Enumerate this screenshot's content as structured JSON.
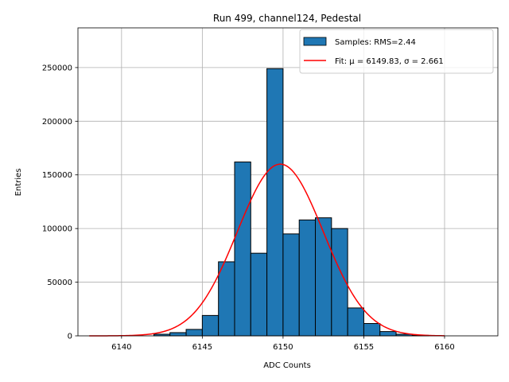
{
  "chart_data": {
    "type": "bar",
    "title": "Run 499, channel124, Pedestal",
    "xlabel": "ADC Counts",
    "ylabel": "Entries",
    "xlim": [
      6137.3,
      6163.3
    ],
    "ylim": [
      0,
      287000
    ],
    "grid": true,
    "xticks": [
      6140,
      6145,
      6150,
      6155,
      6160
    ],
    "yticks": [
      0,
      50000,
      100000,
      150000,
      200000,
      250000
    ],
    "bin_edges": [
      6138,
      6139,
      6140,
      6141,
      6142,
      6143,
      6144,
      6145,
      6146,
      6147,
      6148,
      6149,
      6150,
      6151,
      6152,
      6153,
      6154,
      6155,
      6156,
      6157,
      6158,
      6159,
      6160,
      6161,
      6162
    ],
    "counts": [
      0,
      0,
      0,
      0,
      1500,
      3000,
      6000,
      19000,
      69000,
      162000,
      77000,
      249000,
      95000,
      108000,
      110000,
      100000,
      26000,
      11500,
      4000,
      1500,
      500,
      0,
      0,
      0
    ],
    "series": [
      {
        "name": "Samples: RMS=2.44",
        "kind": "histogram",
        "color": "#1f77b4"
      },
      {
        "name": "Fit",
        "kind": "gaussian",
        "color": "#ff0000",
        "mu": 6149.83,
        "sigma": 2.661,
        "amplitude": 160000,
        "x_range": [
          6138,
          6160
        ]
      }
    ],
    "legend": {
      "position": "top-right",
      "entries": [
        "Samples: RMS=2.44",
        "Fit: μ = 6149.83, σ = 2.661"
      ]
    }
  }
}
